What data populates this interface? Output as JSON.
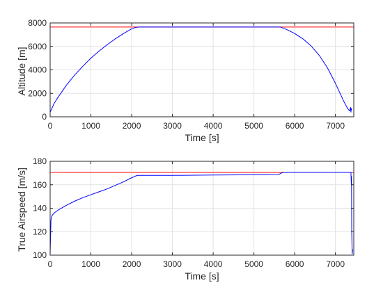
{
  "chart_data": [
    {
      "type": "line",
      "xlabel": "Time [s]",
      "ylabel": "Altitude [m]",
      "xlim": [
        0,
        7450
      ],
      "ylim": [
        0,
        8000
      ],
      "xticks": [
        0,
        1000,
        2000,
        3000,
        4000,
        5000,
        6000,
        7000
      ],
      "yticks": [
        0,
        2000,
        4000,
        6000,
        8000
      ],
      "grid": true,
      "colors": {
        "reference": "#ff0000",
        "actual": "#0000ff"
      },
      "series": [
        {
          "x": [
            0,
            7450
          ],
          "y": [
            7650,
            7650
          ]
        },
        {
          "x": [
            0,
            100,
            200,
            400,
            600,
            800,
            1000,
            1200,
            1400,
            1600,
            1800,
            2000,
            2100,
            2200,
            3000,
            4000,
            5000,
            5650,
            5800,
            6000,
            6200,
            6400,
            6600,
            6800,
            7000,
            7200,
            7300,
            7350,
            7370,
            7380,
            7390,
            7400
          ],
          "y": [
            400,
            1150,
            1700,
            2700,
            3550,
            4300,
            5000,
            5600,
            6150,
            6650,
            7100,
            7500,
            7620,
            7650,
            7650,
            7650,
            7650,
            7650,
            7450,
            7100,
            6650,
            6050,
            5250,
            4200,
            2850,
            1350,
            700,
            500,
            800,
            400,
            700,
            600
          ]
        }
      ]
    },
    {
      "type": "line",
      "xlabel": "Time [s]",
      "ylabel": "True Airspeed [m/s]",
      "xlim": [
        0,
        7450
      ],
      "ylim": [
        100,
        180
      ],
      "xticks": [
        0,
        1000,
        2000,
        3000,
        4000,
        5000,
        6000,
        7000
      ],
      "yticks": [
        100,
        120,
        140,
        160,
        180
      ],
      "grid": true,
      "colors": {
        "reference": "#ff0000",
        "actual": "#0000ff"
      },
      "series": [
        {
          "x": [
            0,
            7450
          ],
          "y": [
            170.5,
            170.5
          ]
        },
        {
          "x": [
            0,
            20,
            50,
            100,
            200,
            400,
            600,
            800,
            1000,
            1200,
            1400,
            1600,
            1800,
            2000,
            2100,
            2150,
            2200,
            3000,
            4000,
            5000,
            5600,
            5650,
            5700,
            5750,
            6000,
            7000,
            7380,
            7390,
            7395,
            7400,
            7410,
            7420
          ],
          "y": [
            101,
            130,
            134,
            136,
            138.5,
            142.5,
            146,
            149,
            151.5,
            154,
            156.5,
            159.5,
            162.5,
            166,
            167.5,
            168,
            168,
            168,
            168.3,
            168.5,
            168.7,
            169.5,
            170.4,
            170.5,
            170.5,
            170.5,
            170.5,
            160,
            167,
            120,
            101,
            105
          ]
        }
      ]
    }
  ]
}
